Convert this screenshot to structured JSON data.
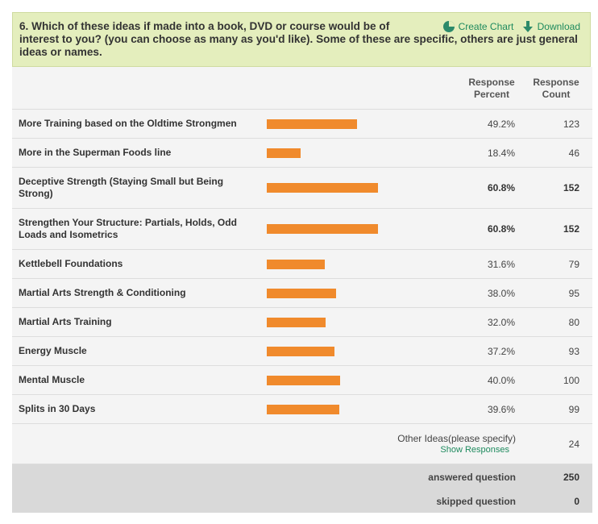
{
  "question": {
    "line1": "6. Which of these ideas if made into a book, DVD or course would be of",
    "line2": "interest to you? (you can choose as many as you'd like). Some of these are specific, others are just general ideas or names.",
    "create_chart_label": "Create Chart",
    "download_label": "Download"
  },
  "table": {
    "col_percent": "Response Percent",
    "col_count": "Response Count",
    "rows": [
      {
        "label": "More Training based on the Oldtime Strongmen",
        "percent": "49.2%",
        "count": "123",
        "value": 49.2
      },
      {
        "label": "More in the Superman Foods line",
        "percent": "18.4%",
        "count": "46",
        "value": 18.4
      },
      {
        "label": "Deceptive Strength (Staying Small but Being Strong)",
        "percent": "60.8%",
        "count": "152",
        "value": 60.8
      },
      {
        "label": "Strengthen Your Structure: Partials, Holds, Odd Loads and Isometrics",
        "percent": "60.8%",
        "count": "152",
        "value": 60.8
      },
      {
        "label": "Kettlebell Foundations",
        "percent": "31.6%",
        "count": "79",
        "value": 31.6
      },
      {
        "label": "Martial Arts Strength & Conditioning",
        "percent": "38.0%",
        "count": "95",
        "value": 38.0
      },
      {
        "label": "Martial Arts Training",
        "percent": "32.0%",
        "count": "80",
        "value": 32.0
      },
      {
        "label": "Energy Muscle",
        "percent": "37.2%",
        "count": "93",
        "value": 37.2
      },
      {
        "label": "Mental Muscle",
        "percent": "40.0%",
        "count": "100",
        "value": 40.0
      },
      {
        "label": "Splits in 30 Days",
        "percent": "39.6%",
        "count": "99",
        "value": 39.6
      }
    ],
    "other_label": "Other Ideas(please specify)",
    "show_responses": "Show Responses",
    "other_count": "24",
    "answered_label": "answered question",
    "answered_value": "250",
    "skipped_label": "skipped question",
    "skipped_value": "0"
  },
  "colors": {
    "bar": "#f08a2c",
    "header_bg": "#e4eebd",
    "link": "#1e8a5e"
  },
  "icons": {
    "create_chart": "pie-chart-icon",
    "download": "download-arrow-icon"
  }
}
